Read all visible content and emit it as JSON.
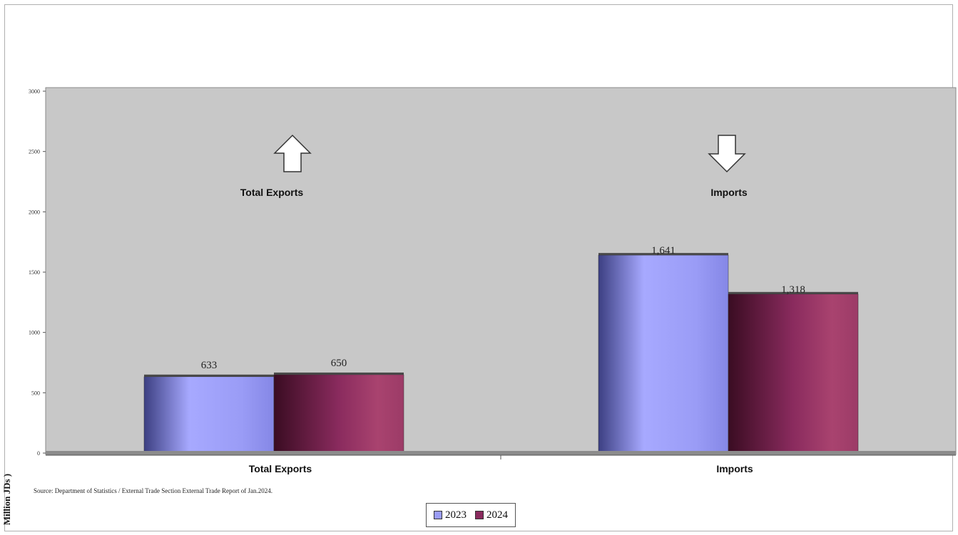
{
  "chart_data": {
    "type": "bar",
    "categories": [
      "Total Exports",
      "Imports"
    ],
    "series": [
      {
        "name": "2023",
        "values": [
          633,
          1641
        ],
        "labels": [
          "633",
          "1,641"
        ],
        "color": "#9a9cf6"
      },
      {
        "name": "2024",
        "values": [
          650,
          1318
        ],
        "labels": [
          "650",
          "1,318"
        ],
        "color": "#8a2b5e"
      }
    ],
    "ylim": [
      0,
      3000
    ],
    "yticks": [
      "0",
      "500",
      "1000",
      "1500",
      "2000",
      "2500",
      "3000"
    ],
    "ylabel": "Million JDs )",
    "annotations": [
      {
        "text": "Total Exports",
        "arrow": "up-arrow-icon"
      },
      {
        "text": "Imports",
        "arrow": "down-arrow-icon"
      }
    ],
    "plot_background": "#c8c8c8",
    "legend_position": "bottom-center",
    "source": "Source: Department of Statistics / External Trade Section External Trade Report of Jan.2024."
  }
}
